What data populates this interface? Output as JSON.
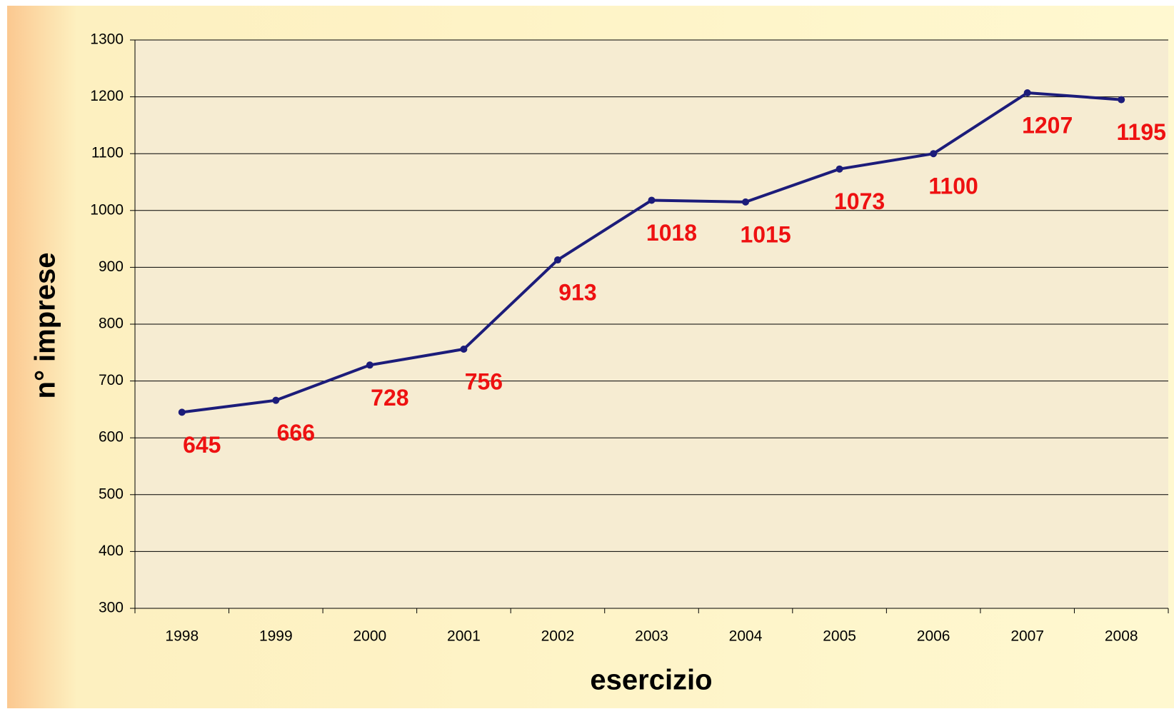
{
  "chart_data": {
    "type": "line",
    "x_label": "esercizio",
    "y_label": "n° imprese",
    "categories": [
      "1998",
      "1999",
      "2000",
      "2001",
      "2002",
      "2003",
      "2004",
      "2005",
      "2006",
      "2007",
      "2008"
    ],
    "series": [
      {
        "color": "#1c1c7a",
        "label_color": "#ee1111",
        "values": [
          645,
          666,
          728,
          756,
          913,
          1018,
          1015,
          1073,
          1100,
          1207,
          1195
        ]
      }
    ],
    "ylim": [
      300,
      1300
    ],
    "yticks": [
      300,
      400,
      500,
      600,
      700,
      800,
      900,
      1000,
      1100,
      1200,
      1300
    ],
    "grid": true
  }
}
